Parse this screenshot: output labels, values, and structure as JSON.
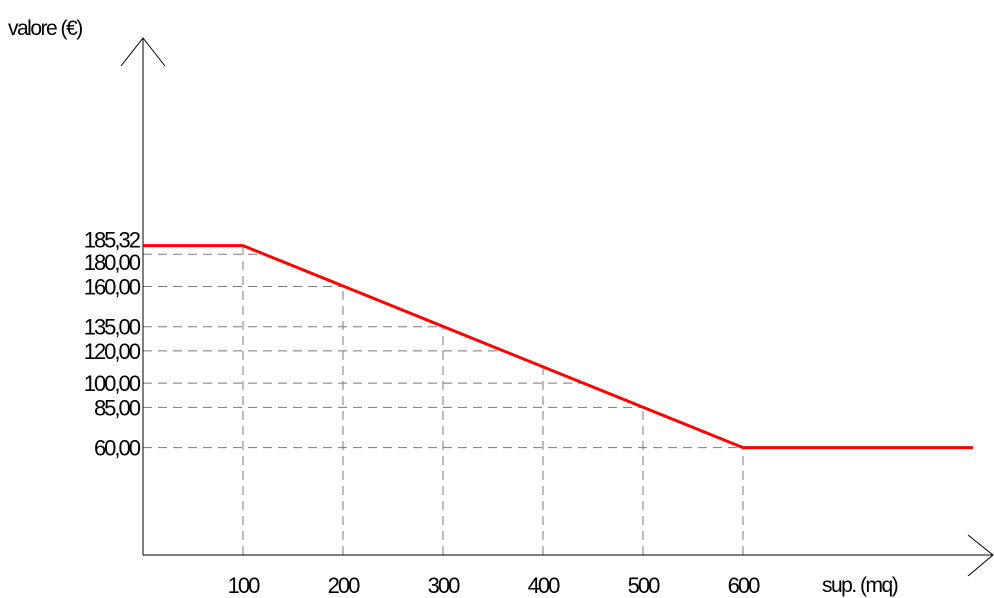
{
  "chart_data": {
    "type": "line",
    "xlabel": "sup. (mq)",
    "ylabel": "valore (€)",
    "x_ticks": [
      {
        "value": 100,
        "label": "100"
      },
      {
        "value": 200,
        "label": "200"
      },
      {
        "value": 300,
        "label": "300"
      },
      {
        "value": 400,
        "label": "400"
      },
      {
        "value": 500,
        "label": "500"
      },
      {
        "value": 600,
        "label": "600"
      }
    ],
    "y_ticks": [
      {
        "value": 185.32,
        "label": "185,32"
      },
      {
        "value": 180,
        "label": "180,00"
      },
      {
        "value": 160,
        "label": "160,00"
      },
      {
        "value": 135,
        "label": "135,00"
      },
      {
        "value": 120,
        "label": "120,00"
      },
      {
        "value": 100,
        "label": "100,00"
      },
      {
        "value": 85,
        "label": "85,00"
      },
      {
        "value": 60,
        "label": "60,00"
      }
    ],
    "series": [
      {
        "color": "#ff0000",
        "points": [
          {
            "x": 0,
            "y": 185.32
          },
          {
            "x": 100,
            "y": 185.32
          },
          {
            "x": 600,
            "y": 60
          },
          {
            "x": 830,
            "y": 60
          }
        ]
      }
    ],
    "xlim": [
      0,
      830
    ],
    "ylim": [
      -6.6,
      310
    ],
    "grid": "dashed reference lines at tick values"
  }
}
